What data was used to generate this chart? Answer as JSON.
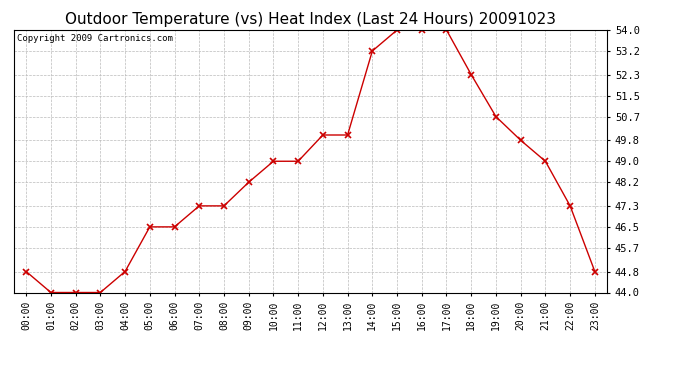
{
  "title": "Outdoor Temperature (vs) Heat Index (Last 24 Hours) 20091023",
  "copyright": "Copyright 2009 Cartronics.com",
  "x_labels": [
    "00:00",
    "01:00",
    "02:00",
    "03:00",
    "04:00",
    "05:00",
    "06:00",
    "07:00",
    "08:00",
    "09:00",
    "10:00",
    "11:00",
    "12:00",
    "13:00",
    "14:00",
    "15:00",
    "16:00",
    "17:00",
    "18:00",
    "19:00",
    "20:00",
    "21:00",
    "22:00",
    "23:00"
  ],
  "y_values": [
    44.8,
    44.0,
    44.0,
    44.0,
    44.8,
    46.5,
    46.5,
    47.3,
    47.3,
    48.2,
    49.0,
    49.0,
    50.0,
    50.0,
    53.2,
    54.0,
    54.0,
    54.0,
    52.3,
    50.7,
    49.8,
    49.0,
    47.3,
    44.8
  ],
  "ylim_min": 44.0,
  "ylim_max": 54.0,
  "yticks": [
    44.0,
    44.8,
    45.7,
    46.5,
    47.3,
    48.2,
    49.0,
    49.8,
    50.7,
    51.5,
    52.3,
    53.2,
    54.0
  ],
  "line_color": "#cc0000",
  "marker": "x",
  "marker_color": "#cc0000",
  "bg_color": "#ffffff",
  "plot_bg_color": "#ffffff",
  "grid_color": "#bbbbbb",
  "title_fontsize": 11,
  "copyright_fontsize": 6.5,
  "tick_fontsize": 7,
  "ytick_fontsize": 7.5
}
